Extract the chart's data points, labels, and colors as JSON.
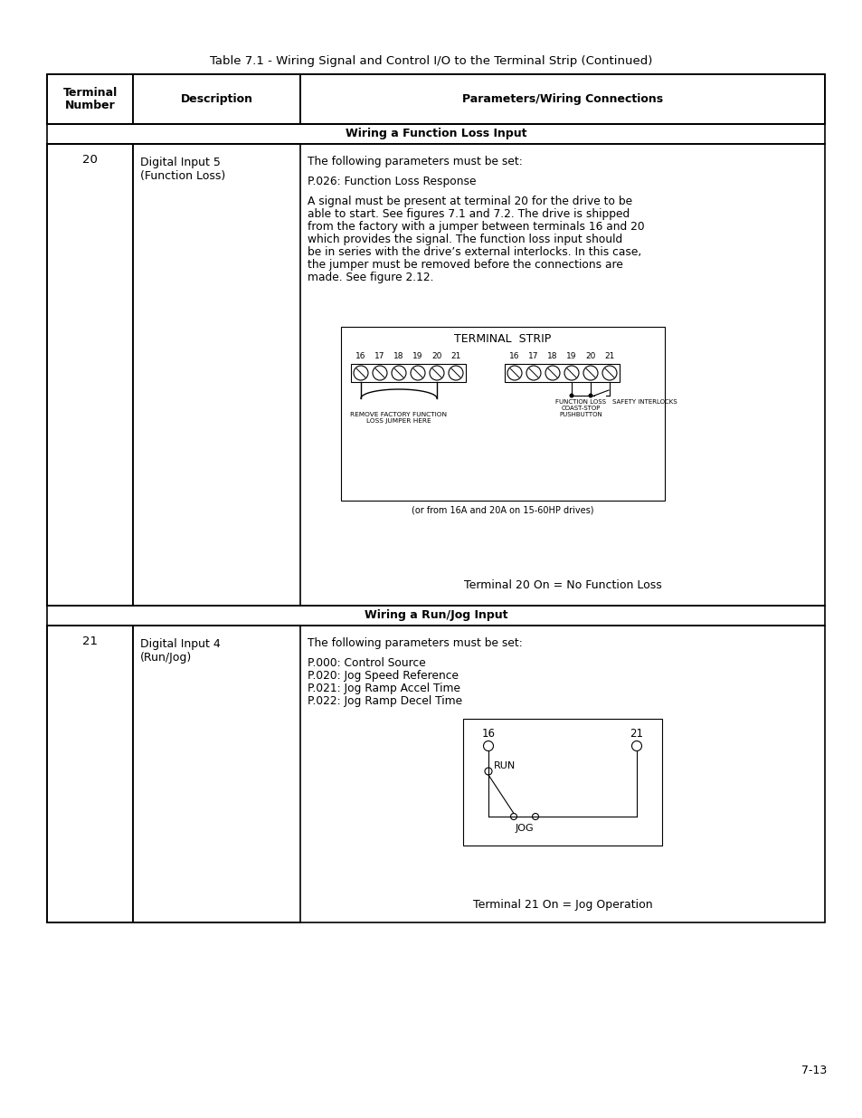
{
  "title": "Table 7.1 - Wiring Signal and Control I/O to the Terminal Strip (Continued)",
  "col_headers": [
    "Terminal\nNumber",
    "Description",
    "Parameters/Wiring Connections"
  ],
  "section1_header": "Wiring a Function Loss Input",
  "section1_terminal": "20",
  "section1_desc": "Digital Input 5\n(Function Loss)",
  "section1_params": [
    "The following parameters must be set:",
    "",
    "P.026: Function Loss Response",
    "",
    "A signal must be present at terminal 20 for the drive to be",
    "able to start. See figures 7.1 and 7.2. The drive is shipped",
    "from the factory with a jumper between terminals 16 and 20",
    "which provides the signal. The function loss input should",
    "be in series with the drive’s external interlocks. In this case,",
    "the jumper must be removed before the connections are",
    "made. See figure 2.12."
  ],
  "section1_caption": "Terminal 20 On = No Function Loss",
  "section2_header": "Wiring a Run/Jog Input",
  "section2_terminal": "21",
  "section2_desc": "Digital Input 4\n(Run/Jog)",
  "section2_params": [
    "The following parameters must be set:",
    "",
    "P.000: Control Source",
    "P.020: Jog Speed Reference",
    "P.021: Jog Ramp Accel Time",
    "P.022: Jog Ramp Decel Time"
  ],
  "section2_caption": "Terminal 21 On = Jog Operation",
  "page_num": "7-13",
  "bg_color": "#ffffff",
  "border_color": "#000000",
  "text_color": "#000000"
}
